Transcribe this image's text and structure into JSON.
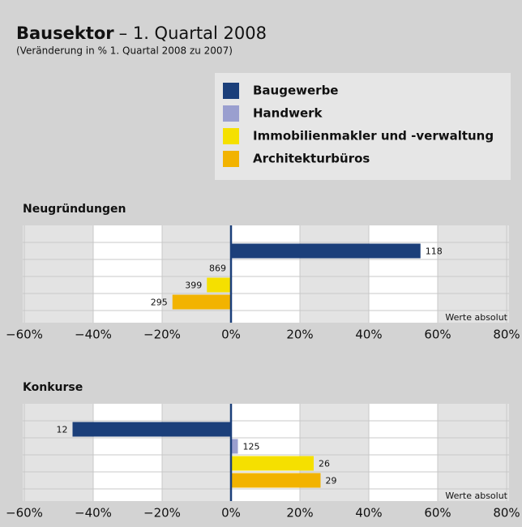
{
  "header": {
    "title": "Bausektor",
    "title_rest": "– 1. Quartal 2008",
    "subtitle": "(Veränderung in %  1. Quartal 2008 zu 2007)"
  },
  "chart_data": [
    {
      "type": "bar",
      "orientation": "horizontal",
      "title": "Neugründungen",
      "categories": [
        "Baugewerbe",
        "Handwerk",
        "Immobilienmakler und -verwaltung",
        "Architekturbüros"
      ],
      "colors": [
        "#1b3f7a",
        "#9a9fcf",
        "#f5e000",
        "#f2b300"
      ],
      "values": [
        55,
        0,
        -7,
        -17
      ],
      "absolute_values": [
        118,
        869,
        399,
        295
      ],
      "note": "Werte absolut",
      "xlim": [
        -60,
        80
      ],
      "xticks": [
        {
          "value": -60,
          "label": "−60%"
        },
        {
          "value": -40,
          "label": "−40%"
        },
        {
          "value": -20,
          "label": "−20%"
        },
        {
          "value": 0,
          "label": "0%"
        },
        {
          "value": 20,
          "label": "20%"
        },
        {
          "value": 40,
          "label": "40%"
        },
        {
          "value": 60,
          "label": "60%"
        },
        {
          "value": 80,
          "label": "80%"
        }
      ],
      "grid": true
    },
    {
      "type": "bar",
      "orientation": "horizontal",
      "title": "Konkurse",
      "categories": [
        "Baugewerbe",
        "Handwerk",
        "Immobilienmakler und -verwaltung",
        "Architekturbüros"
      ],
      "colors": [
        "#1b3f7a",
        "#9a9fcf",
        "#f5e000",
        "#f2b300"
      ],
      "values": [
        -46,
        2,
        24,
        26
      ],
      "absolute_values": [
        12,
        125,
        26,
        29
      ],
      "note": "Werte absolut",
      "xlim": [
        -60,
        80
      ],
      "xticks": [
        {
          "value": -60,
          "label": "−60%"
        },
        {
          "value": -40,
          "label": "−40%"
        },
        {
          "value": -20,
          "label": "−20%"
        },
        {
          "value": 0,
          "label": "0%"
        },
        {
          "value": 20,
          "label": "20%"
        },
        {
          "value": 40,
          "label": "40%"
        },
        {
          "value": 60,
          "label": "60%"
        },
        {
          "value": 80,
          "label": "80%"
        }
      ],
      "grid": true
    }
  ]
}
